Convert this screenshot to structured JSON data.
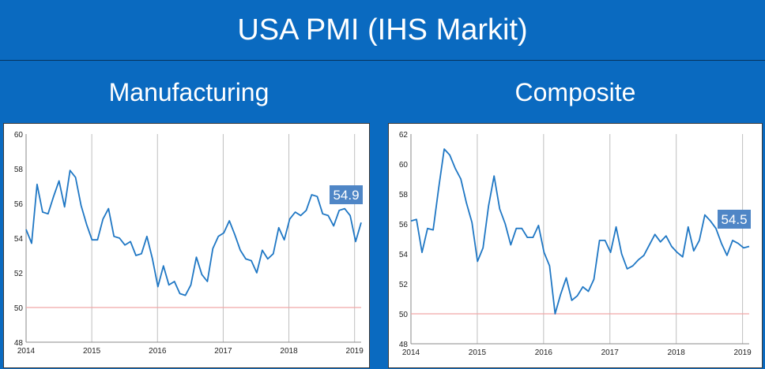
{
  "header": {
    "title": "USA PMI (IHS Markit)"
  },
  "colors": {
    "background": "#0a6ac0",
    "series": "#1f77c4",
    "threshold": "#f1a7a7",
    "grid": "#bfbfbf",
    "callout": "#4f86c6"
  },
  "chart_data": [
    {
      "type": "line",
      "title": "Manufacturing",
      "ylim": [
        48,
        60
      ],
      "xlim": [
        2014,
        2019.1
      ],
      "y_ticks": [
        "48",
        "50",
        "52",
        "54",
        "56",
        "58",
        "60"
      ],
      "x_ticks": [
        "2014",
        "2015",
        "2016",
        "2017",
        "2018",
        "2019"
      ],
      "grid": "vertical at years",
      "threshold": 50,
      "callout": "54.9",
      "series": [
        {
          "values": [
            54.5,
            53.7,
            57.1,
            55.5,
            55.4,
            56.4,
            57.3,
            55.8,
            57.9,
            57.5,
            55.9,
            54.8,
            53.9,
            53.9,
            55.1,
            55.7,
            54.1,
            54.0,
            53.6,
            53.8,
            53.0,
            53.1,
            54.1,
            52.8,
            51.2,
            52.4,
            51.3,
            51.5,
            50.8,
            50.7,
            51.3,
            52.9,
            51.9,
            51.5,
            53.4,
            54.1,
            54.3,
            55.0,
            54.2,
            53.3,
            52.8,
            52.7,
            52.0,
            53.3,
            52.8,
            53.1,
            54.6,
            53.9,
            55.1,
            55.5,
            55.3,
            55.6,
            56.5,
            56.4,
            55.4,
            55.3,
            54.7,
            55.6,
            55.7,
            55.3,
            53.8,
            54.9
          ]
        }
      ]
    },
    {
      "type": "line",
      "title": "Composite",
      "ylim": [
        48,
        62
      ],
      "xlim": [
        2014,
        2019.1
      ],
      "y_ticks": [
        "48",
        "50",
        "52",
        "54",
        "56",
        "58",
        "60",
        "62"
      ],
      "x_ticks": [
        "2014",
        "2015",
        "2016",
        "2017",
        "2018",
        "2019"
      ],
      "grid": "vertical at years",
      "threshold": 50,
      "callout": "54.5",
      "series": [
        {
          "values": [
            56.2,
            56.3,
            54.1,
            55.7,
            55.6,
            58.4,
            61.0,
            60.6,
            59.7,
            59.0,
            57.4,
            56.1,
            53.5,
            54.4,
            57.2,
            59.2,
            57.0,
            56.0,
            54.6,
            55.7,
            55.7,
            55.1,
            55.1,
            55.9,
            54.1,
            53.2,
            50.0,
            51.3,
            52.4,
            50.9,
            51.2,
            51.8,
            51.5,
            52.3,
            54.9,
            54.9,
            54.1,
            55.8,
            54.0,
            53.0,
            53.2,
            53.6,
            53.9,
            54.6,
            55.3,
            54.8,
            55.2,
            54.5,
            54.1,
            53.8,
            55.8,
            54.2,
            54.9,
            56.6,
            56.2,
            55.7,
            54.7,
            53.9,
            54.9,
            54.7,
            54.4,
            54.5
          ]
        }
      ]
    }
  ]
}
